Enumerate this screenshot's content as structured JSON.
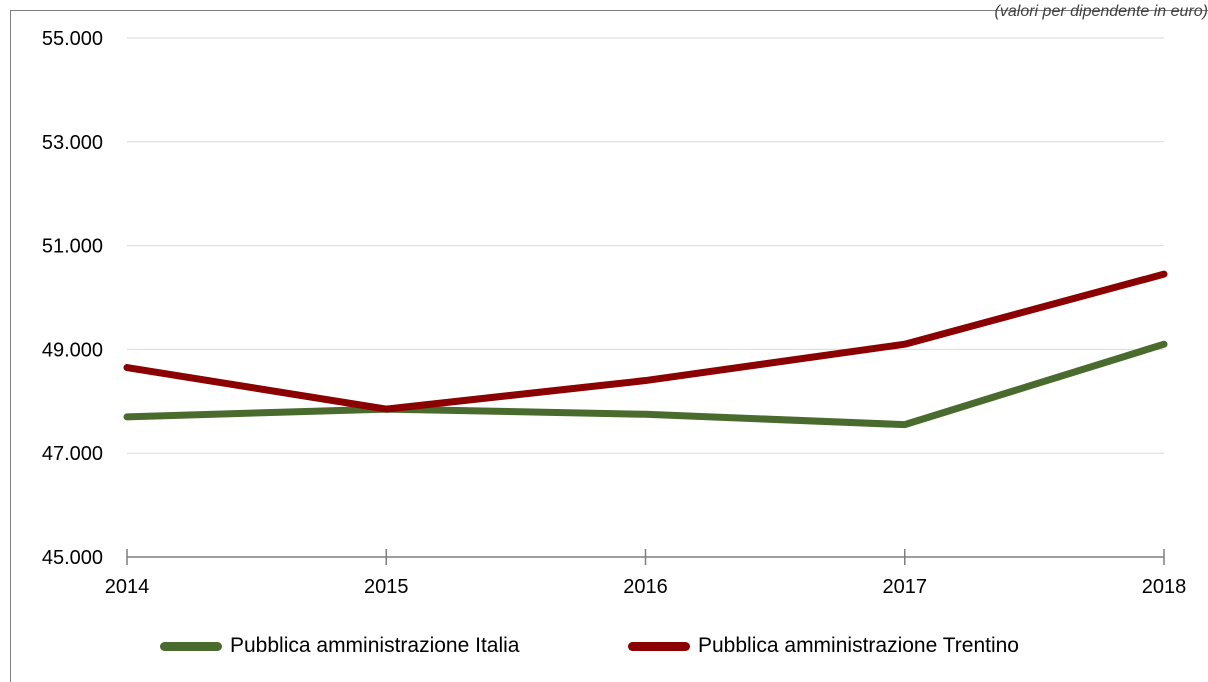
{
  "chart_data": {
    "type": "line",
    "title": "",
    "subtitle": "(valori per dipendente in euro)",
    "xlabel": "",
    "ylabel": "",
    "x": [
      "2014",
      "2015",
      "2016",
      "2017",
      "2018"
    ],
    "ylim": [
      45000,
      55000
    ],
    "yticks": [
      "45.000",
      "47.000",
      "49.000",
      "51.000",
      "53.000",
      "55.000"
    ],
    "ytick_values": [
      45000,
      47000,
      49000,
      51000,
      53000,
      55000
    ],
    "grid": true,
    "legend_position": "bottom",
    "series": [
      {
        "name": "Pubblica amministrazione Italia",
        "color": "#4a6b2e",
        "values": [
          47700,
          47850,
          47750,
          47550,
          49100
        ]
      },
      {
        "name": "Pubblica amministrazione Trentino",
        "color": "#8b0000",
        "values": [
          48650,
          47850,
          48400,
          49100,
          50450
        ]
      }
    ]
  }
}
